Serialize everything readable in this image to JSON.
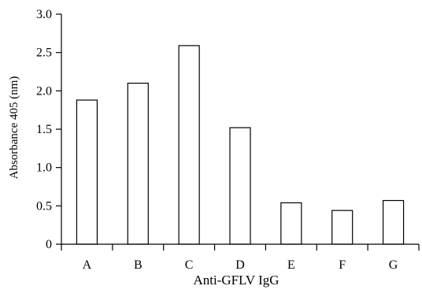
{
  "chart_data": {
    "type": "bar",
    "title": "",
    "xlabel": "Anti-GFLV IgG",
    "ylabel": "Absorbance 405 (nm)",
    "categories": [
      "A",
      "B",
      "C",
      "D",
      "E",
      "F",
      "G"
    ],
    "values": [
      1.88,
      2.1,
      2.59,
      1.52,
      0.54,
      0.44,
      0.57
    ],
    "ylim": [
      0,
      3.0
    ],
    "yticks": [
      "0",
      "0.5",
      "1.0",
      "1.5",
      "2.0",
      "2.5",
      "3.0"
    ],
    "grid": false,
    "legend": "none",
    "colors": {
      "bar_fill": "#ffffff",
      "bar_stroke": "#000000",
      "axis": "#000000"
    }
  }
}
